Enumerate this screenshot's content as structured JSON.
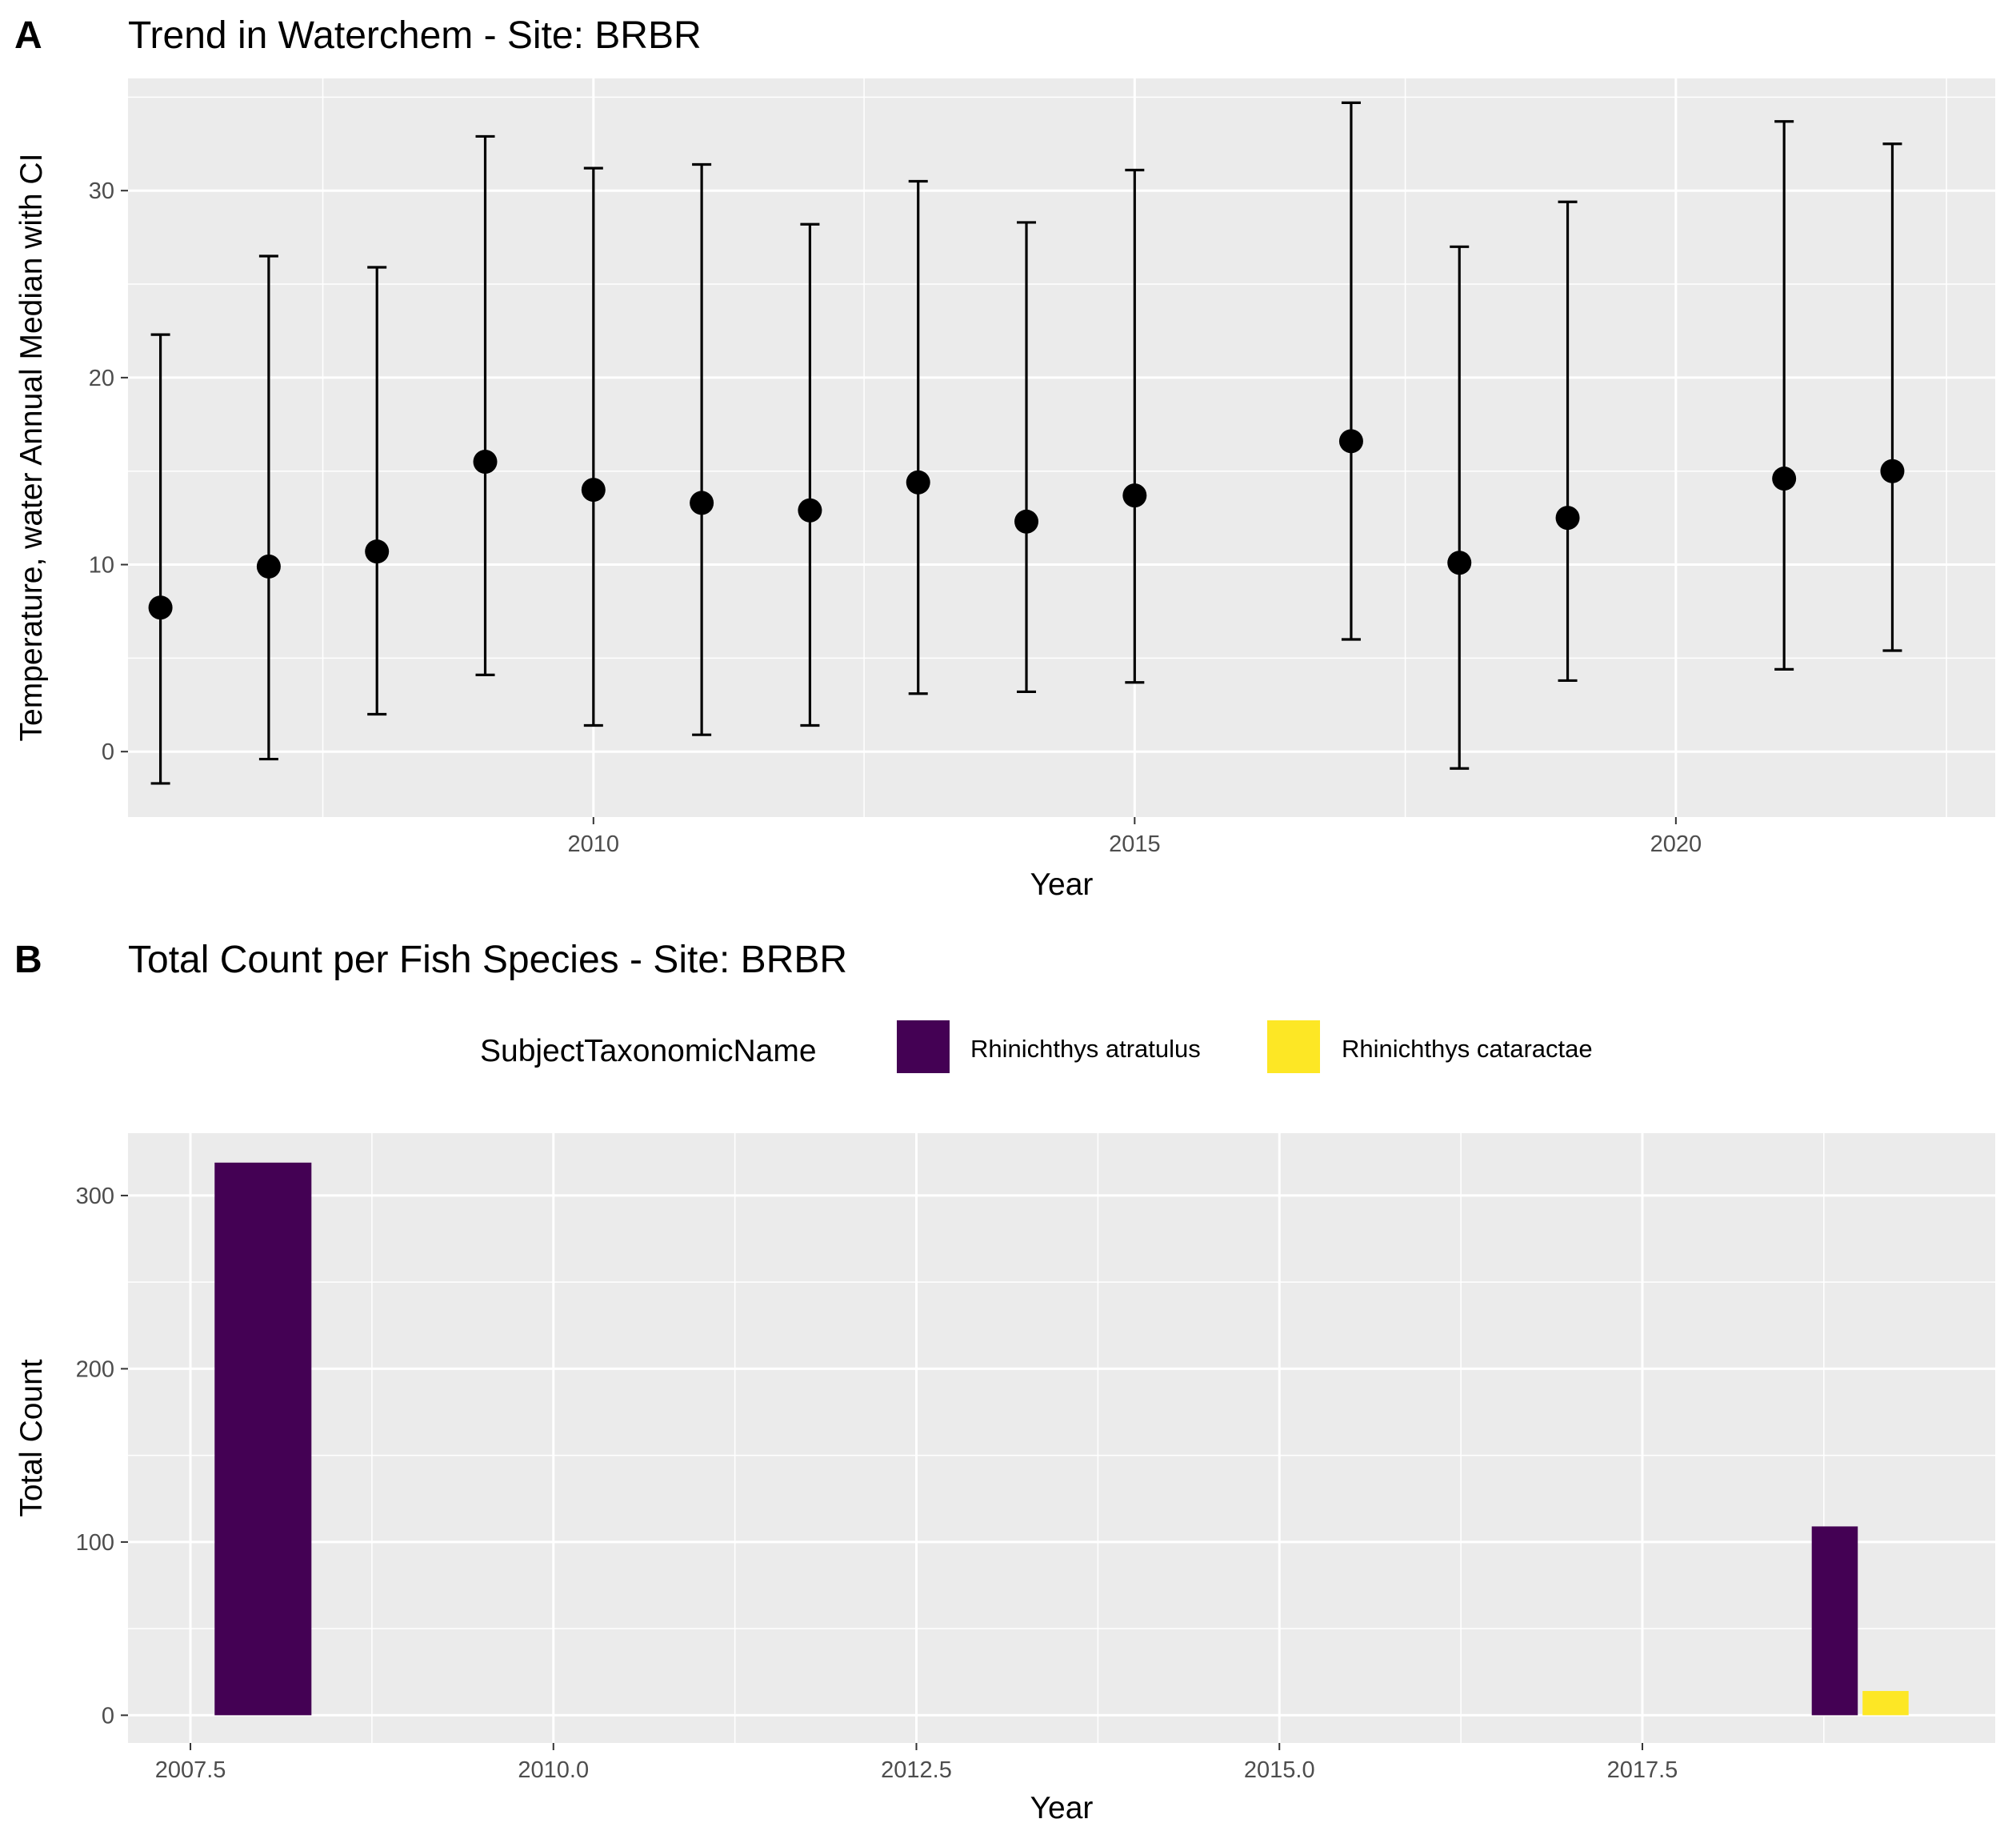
{
  "chart_data": [
    {
      "panel_tag": "A",
      "type": "scatter",
      "title": "Trend in Waterchem - Site: BRBR",
      "xlabel": "Year",
      "ylabel": "Temperature, water Annual Median with CI",
      "xlim": [
        2005.7,
        2022.95
      ],
      "ylim": [
        -3.5,
        36.0
      ],
      "x_ticks": [
        2010,
        2015,
        2020
      ],
      "y_ticks": [
        0,
        10,
        20,
        30
      ],
      "grid": true,
      "points": [
        {
          "x": 2006,
          "y": 7.7,
          "low": -1.7,
          "high": 22.3
        },
        {
          "x": 2007,
          "y": 9.9,
          "low": -0.4,
          "high": 26.5
        },
        {
          "x": 2008,
          "y": 10.7,
          "low": 2.0,
          "high": 25.9
        },
        {
          "x": 2009,
          "y": 15.5,
          "low": 4.1,
          "high": 32.9
        },
        {
          "x": 2010,
          "y": 14.0,
          "low": 1.4,
          "high": 31.2
        },
        {
          "x": 2011,
          "y": 13.3,
          "low": 0.9,
          "high": 31.4
        },
        {
          "x": 2012,
          "y": 12.9,
          "low": 1.4,
          "high": 28.2
        },
        {
          "x": 2013,
          "y": 14.4,
          "low": 3.1,
          "high": 30.5
        },
        {
          "x": 2014,
          "y": 12.3,
          "low": 3.2,
          "high": 28.3
        },
        {
          "x": 2015,
          "y": 13.7,
          "low": 3.7,
          "high": 31.1
        },
        {
          "x": 2017,
          "y": 16.6,
          "low": 6.0,
          "high": 34.7
        },
        {
          "x": 2018,
          "y": 10.1,
          "low": -0.9,
          "high": 27.0
        },
        {
          "x": 2019,
          "y": 12.5,
          "low": 3.8,
          "high": 29.4
        },
        {
          "x": 2021,
          "y": 14.6,
          "low": 4.4,
          "high": 33.7
        },
        {
          "x": 2022,
          "y": 15.0,
          "low": 5.4,
          "high": 32.5
        }
      ]
    },
    {
      "panel_tag": "B",
      "type": "bar",
      "title": "Total Count per Fish Species - Site: BRBR",
      "xlabel": "Year",
      "ylabel": "Total Count",
      "xlim": [
        2007.07,
        2019.93
      ],
      "ylim": [
        -16,
        336
      ],
      "x_ticks": [
        2007.5,
        2010.0,
        2012.5,
        2015.0,
        2017.5
      ],
      "y_ticks": [
        0,
        100,
        200,
        300
      ],
      "grid": true,
      "legend": {
        "title": "SubjectTaxonomicName",
        "position": "top"
      },
      "series": [
        {
          "name": "Rhinichthys atratulus",
          "color": "#440154",
          "bars": [
            {
              "x": 2008,
              "value": 319
            },
            {
              "x": 2019,
              "value": 109
            }
          ]
        },
        {
          "name": "Rhinichthys cataractae",
          "color": "#FDE725",
          "bars": [
            {
              "x": 2019,
              "value": 14
            }
          ]
        }
      ]
    }
  ]
}
